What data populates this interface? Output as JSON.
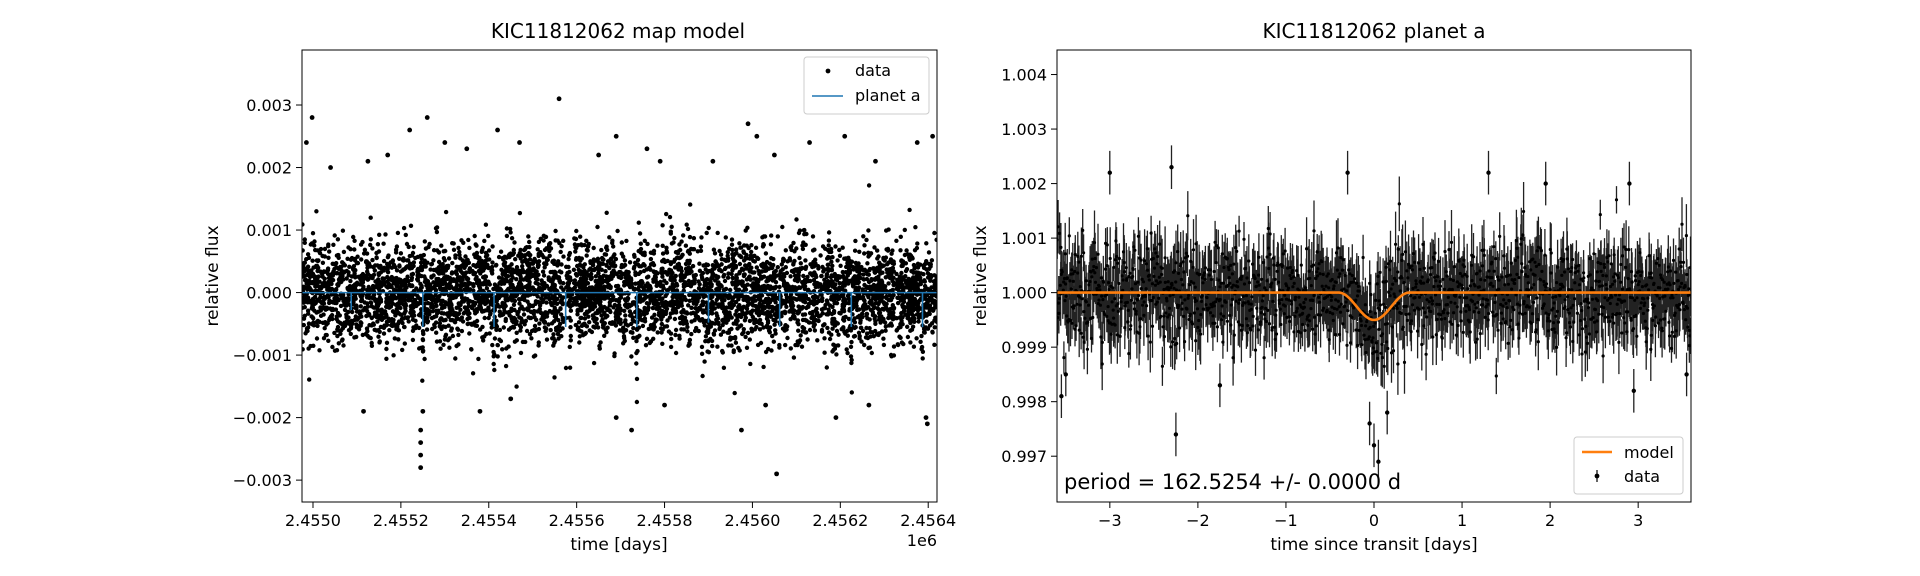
{
  "chart_data": [
    {
      "type": "scatter",
      "title": "KIC11812062 map model",
      "xlabel": "time [days]",
      "ylabel": "relative flux",
      "x_offset_label": "1e6",
      "xlim": [
        2454975,
        2456420
      ],
      "ylim": [
        -0.00335,
        0.00388
      ],
      "xticks": [
        2455000,
        2455200,
        2455400,
        2455600,
        2455800,
        2456000,
        2456200,
        2456400
      ],
      "xtick_labels": [
        "2.4550",
        "2.4552",
        "2.4554",
        "2.4556",
        "2.4558",
        "2.4560",
        "2.4562",
        "2.4564"
      ],
      "yticks": [
        -0.003,
        -0.002,
        -0.001,
        0.0,
        0.001,
        0.002,
        0.003
      ],
      "ytick_labels": [
        "−0.003",
        "−0.002",
        "−0.001",
        "0.000",
        "0.001",
        "0.002",
        "0.003"
      ],
      "grid": false,
      "legend": {
        "position": "top-right",
        "entries": [
          "data",
          "planet a"
        ]
      },
      "series": [
        {
          "name": "data",
          "marker": "dot",
          "color": "#000000",
          "data_gaps": [
            2455573,
            2456325
          ],
          "noise_sigma": 0.0004,
          "outliers": [
            {
              "x": 2454985,
              "y": 0.0024
            },
            {
              "x": 2454998,
              "y": 0.0028
            },
            {
              "x": 2455040,
              "y": 0.002
            },
            {
              "x": 2455125,
              "y": 0.0021
            },
            {
              "x": 2455170,
              "y": 0.0022
            },
            {
              "x": 2455220,
              "y": 0.0026
            },
            {
              "x": 2455260,
              "y": 0.0028
            },
            {
              "x": 2455300,
              "y": 0.0024
            },
            {
              "x": 2455350,
              "y": 0.0023
            },
            {
              "x": 2455420,
              "y": 0.0026
            },
            {
              "x": 2455470,
              "y": 0.0024
            },
            {
              "x": 2455560,
              "y": 0.0031
            },
            {
              "x": 2455650,
              "y": 0.0022
            },
            {
              "x": 2455690,
              "y": 0.0025
            },
            {
              "x": 2455760,
              "y": 0.0023
            },
            {
              "x": 2455790,
              "y": 0.0021
            },
            {
              "x": 2455910,
              "y": 0.0021
            },
            {
              "x": 2455990,
              "y": 0.0027
            },
            {
              "x": 2456010,
              "y": 0.0025
            },
            {
              "x": 2456050,
              "y": 0.0022
            },
            {
              "x": 2456130,
              "y": 0.0024
            },
            {
              "x": 2456210,
              "y": 0.0025
            },
            {
              "x": 2456280,
              "y": 0.0021
            },
            {
              "x": 2456375,
              "y": 0.0024
            },
            {
              "x": 2456410,
              "y": 0.0025
            },
            {
              "x": 2455115,
              "y": -0.0019
            },
            {
              "x": 2455245,
              "y": -0.0028
            },
            {
              "x": 2455245,
              "y": -0.0026
            },
            {
              "x": 2455245,
              "y": -0.0024
            },
            {
              "x": 2455245,
              "y": -0.0022
            },
            {
              "x": 2455250,
              "y": -0.0019
            },
            {
              "x": 2455380,
              "y": -0.0019
            },
            {
              "x": 2455450,
              "y": -0.0017
            },
            {
              "x": 2455690,
              "y": -0.002
            },
            {
              "x": 2455725,
              "y": -0.0022
            },
            {
              "x": 2455800,
              "y": -0.0018
            },
            {
              "x": 2455975,
              "y": -0.0022
            },
            {
              "x": 2456030,
              "y": -0.0018
            },
            {
              "x": 2456055,
              "y": -0.0029
            },
            {
              "x": 2456190,
              "y": -0.002
            },
            {
              "x": 2456265,
              "y": -0.0018
            },
            {
              "x": 2456395,
              "y": -0.002
            },
            {
              "x": 2456398,
              "y": -0.0021
            }
          ]
        },
        {
          "name": "planet a",
          "type": "line",
          "color": "#1f77b4",
          "baseline": 0.0,
          "transits": [
            {
              "x": 2455087,
              "depth": 0.00028
            },
            {
              "x": 2455250,
              "depth": 0.00055
            },
            {
              "x": 2455412,
              "depth": 0.00055
            },
            {
              "x": 2455575,
              "depth": 0.00055
            },
            {
              "x": 2455737,
              "depth": 0.00055
            },
            {
              "x": 2455900,
              "depth": 0.00048
            },
            {
              "x": 2456062,
              "depth": 0.00055
            },
            {
              "x": 2456225,
              "depth": 0.00055
            },
            {
              "x": 2456387,
              "depth": 0.00055
            }
          ]
        }
      ]
    },
    {
      "type": "scatter",
      "title": "KIC11812062 planet a",
      "xlabel": "time since transit [days]",
      "ylabel": "relative flux",
      "xlim": [
        -3.6,
        3.6
      ],
      "ylim": [
        0.99616,
        1.00445
      ],
      "xticks": [
        -3,
        -2,
        -1,
        0,
        1,
        2,
        3
      ],
      "xtick_labels": [
        "−3",
        "−2",
        "−1",
        "0",
        "1",
        "2",
        "3"
      ],
      "yticks": [
        0.997,
        0.998,
        0.999,
        1.0,
        1.001,
        1.002,
        1.003,
        1.004
      ],
      "ytick_labels": [
        "0.997",
        "0.998",
        "0.999",
        "1.000",
        "1.001",
        "1.002",
        "1.003",
        "1.004"
      ],
      "grid": false,
      "legend": {
        "position": "bottom-right",
        "entries": [
          "model",
          "data"
        ]
      },
      "annotation": "period = 162.5254 +/- 0.0000 d",
      "series": [
        {
          "name": "model",
          "type": "line",
          "color": "#ff7f0e",
          "baseline": 1.0,
          "transit_center": 0.0,
          "transit_halfwidth": 0.4,
          "transit_depth": 0.0005
        },
        {
          "name": "data",
          "type": "errorbar",
          "color": "#000000",
          "noise_sigma": 0.00045,
          "outliers": [
            {
              "x": -3.55,
              "y": 0.9981
            },
            {
              "x": -3.5,
              "y": 0.9985
            },
            {
              "x": -3.0,
              "y": 1.0022
            },
            {
              "x": -2.3,
              "y": 1.0023
            },
            {
              "x": -2.25,
              "y": 0.9974
            },
            {
              "x": -1.75,
              "y": 0.9983
            },
            {
              "x": -0.3,
              "y": 1.0022
            },
            {
              "x": 0.0,
              "y": 0.9972
            },
            {
              "x": 0.05,
              "y": 0.9969
            },
            {
              "x": -0.05,
              "y": 0.9976
            },
            {
              "x": 0.15,
              "y": 0.9978
            },
            {
              "x": 1.3,
              "y": 1.0022
            },
            {
              "x": 1.95,
              "y": 1.002
            },
            {
              "x": 2.9,
              "y": 1.002
            },
            {
              "x": 2.95,
              "y": 0.9982
            },
            {
              "x": 3.55,
              "y": 0.9985
            }
          ]
        }
      ]
    }
  ]
}
